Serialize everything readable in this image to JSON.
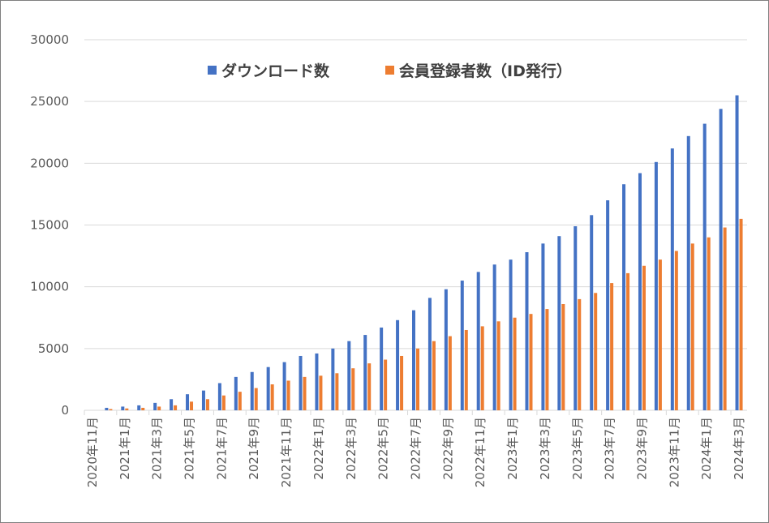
{
  "chart_data": {
    "type": "bar",
    "categories": [
      "2020年11月",
      "2020年12月",
      "2021年1月",
      "2021年2月",
      "2021年3月",
      "2021年4月",
      "2021年5月",
      "2021年6月",
      "2021年7月",
      "2021年8月",
      "2021年9月",
      "2021年10月",
      "2021年11月",
      "2021年12月",
      "2022年1月",
      "2022年2月",
      "2022年3月",
      "2022年4月",
      "2022年5月",
      "2022年6月",
      "2022年7月",
      "2022年8月",
      "2022年9月",
      "2022年10月",
      "2022年11月",
      "2022年12月",
      "2023年1月",
      "2023年2月",
      "2023年3月",
      "2023年4月",
      "2023年5月",
      "2023年6月",
      "2023年7月",
      "2023年8月",
      "2023年9月",
      "2023年10月",
      "2023年11月",
      "2023年12月",
      "2024年1月",
      "2024年2月",
      "2024年3月"
    ],
    "tick_labels": [
      "2020年11月",
      "2021年1月",
      "2021年3月",
      "2021年5月",
      "2021年7月",
      "2021年9月",
      "2021年11月",
      "2022年1月",
      "2022年3月",
      "2022年5月",
      "2022年7月",
      "2022年9月",
      "2022年11月",
      "2023年1月",
      "2023年3月",
      "2023年5月",
      "2023年7月",
      "2023年9月",
      "2023年11月",
      "2024年1月",
      "2024年3月"
    ],
    "series": [
      {
        "name": "ダウンロード数",
        "color": "#4472c4",
        "values": [
          0,
          200,
          300,
          400,
          600,
          900,
          1300,
          1600,
          2200,
          2700,
          3100,
          3500,
          3900,
          4400,
          4600,
          5000,
          5600,
          6100,
          6700,
          7300,
          8100,
          9100,
          9800,
          10500,
          11200,
          11800,
          12200,
          12800,
          13500,
          14100,
          14900,
          15800,
          17000,
          18300,
          19200,
          20100,
          21200,
          22200,
          23200,
          24400,
          25500
        ]
      },
      {
        "name": "会員登録者数（ID発行）",
        "color": "#ed7d31",
        "values": [
          0,
          100,
          150,
          200,
          300,
          400,
          700,
          900,
          1200,
          1500,
          1800,
          2100,
          2400,
          2700,
          2800,
          3000,
          3400,
          3800,
          4100,
          4400,
          5000,
          5600,
          6000,
          6500,
          6800,
          7200,
          7500,
          7800,
          8200,
          8600,
          9000,
          9500,
          10300,
          11100,
          11700,
          12200,
          12900,
          13500,
          14000,
          14800,
          15500
        ]
      }
    ],
    "ylim": [
      0,
      30000
    ],
    "yticks": [
      0,
      5000,
      10000,
      15000,
      20000,
      25000,
      30000
    ],
    "ytick_labels": [
      "0",
      "5000",
      "10000",
      "15000",
      "20000",
      "25000",
      "30000"
    ],
    "grid": true,
    "legend_position": "top-center",
    "title": "",
    "xlabel": "",
    "ylabel": ""
  }
}
